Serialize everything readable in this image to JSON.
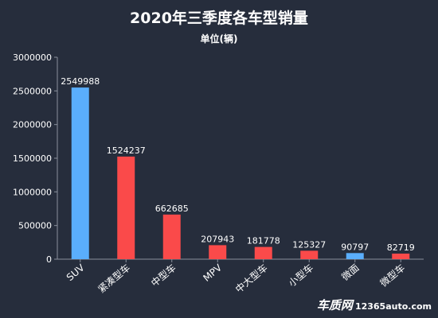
{
  "chart_data": {
    "type": "bar",
    "title": "2020年三季度各车型销量",
    "subtitle": "单位(辆)",
    "categories": [
      "SUV",
      "紧凑型车",
      "中型车",
      "MPV",
      "中大型车",
      "小型车",
      "微面",
      "微型车"
    ],
    "values": [
      2549988,
      1524237,
      662685,
      207943,
      181778,
      125327,
      90797,
      82719
    ],
    "data_labels": [
      "2549988",
      "1524237",
      "662685",
      "207943",
      "181778",
      "125327",
      "90797",
      "82719"
    ],
    "ylim": [
      0,
      3000000
    ],
    "yticks": [
      0,
      500000,
      1000000,
      1500000,
      2000000,
      2500000,
      3000000
    ],
    "ytick_labels": [
      "0",
      "500000",
      "1000000",
      "1500000",
      "2000000",
      "2500000",
      "3000000"
    ],
    "grid": false,
    "legend": "none",
    "colors": {
      "highlight": "#5aaefc",
      "bar": "#fa4a4a",
      "axis": "#8a909c",
      "text": "#ffffff",
      "background": "#262d3c"
    },
    "highlight_categories": [
      "SUV",
      "微面"
    ]
  },
  "watermark": {
    "logo_text": "车质网",
    "site_text": "12365auto.com"
  }
}
